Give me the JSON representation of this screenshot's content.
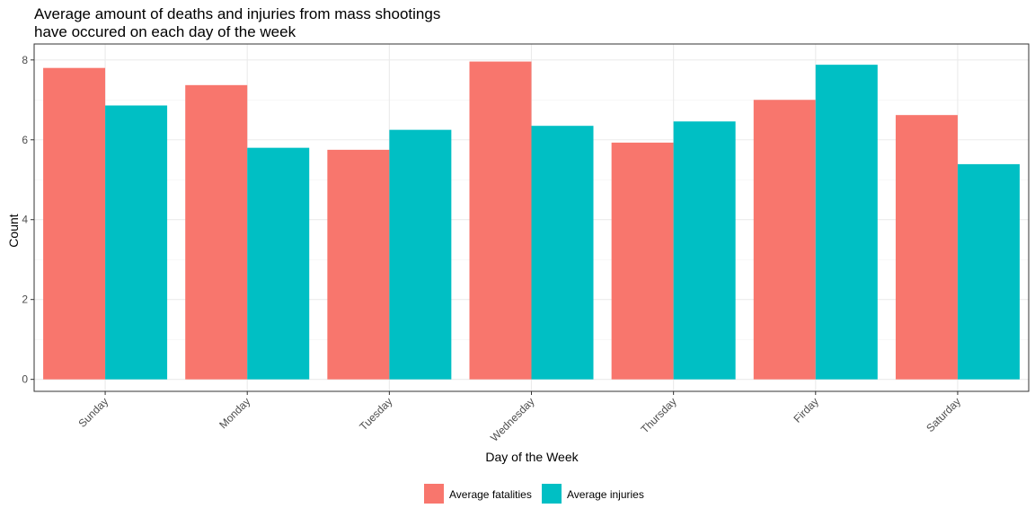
{
  "chart_data": {
    "type": "bar",
    "title": "Average amount of deaths and injuries from mass shootings\nhave occured on each day of the week",
    "title_lines": [
      "Average amount of deaths and injuries from mass shootings",
      "have occured on each day of the week"
    ],
    "xlabel": "Day of the Week",
    "ylabel": "Count",
    "categories": [
      "Sunday",
      "Monday",
      "Tuesday",
      "Wednesday",
      "Thursday",
      "Firday",
      "Saturday"
    ],
    "series": [
      {
        "name": "Average fatalities",
        "color": "#F8766D",
        "values": [
          7.8,
          7.37,
          5.75,
          7.96,
          5.93,
          7.0,
          6.62
        ]
      },
      {
        "name": "Average injuries",
        "color": "#00BFC4",
        "values": [
          6.86,
          5.8,
          6.25,
          6.35,
          6.46,
          7.88,
          5.39
        ]
      }
    ],
    "ylim": [
      -0.3,
      8.4
    ],
    "yticks": [
      "0",
      "2",
      "4",
      "6",
      "8"
    ],
    "grid": true,
    "legend_position": "bottom"
  }
}
